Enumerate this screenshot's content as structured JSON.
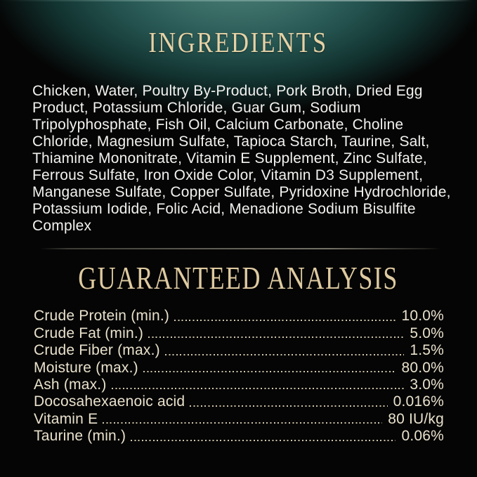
{
  "label": {
    "colors": {
      "background": "#050505",
      "teal_glow": "#3f6f69",
      "heading_gold": "#e3cfa3",
      "ingredients_text": "#f3f2ef",
      "analysis_text": "#e9e1cc",
      "divider": "#6e6c60"
    },
    "ingredients": {
      "title": "INGREDIENTS",
      "lines": [
        "Chicken, Water, Poultry By-Product, Pork Broth, Dried Egg",
        "Product, Potassium Chloride, Guar Gum, Sodium",
        "Tripolyphosphate, Fish Oil, Calcium Carbonate, Choline",
        "Chloride, Magnesium Sulfate, Tapioca Starch, Taurine, Salt,",
        "Thiamine Mononitrate, Vitamin E Supplement, Zinc Sulfate,",
        "Ferrous Sulfate, Iron Oxide Color, Vitamin D3 Supplement,",
        "Manganese Sulfate, Copper Sulfate, Pyridoxine Hydrochloride,",
        "Potassium Iodide, Folic Acid, Menadione Sodium Bisulfite",
        "Complex"
      ]
    },
    "guaranteed_analysis": {
      "title": "GUARANTEED ANALYSIS",
      "rows": [
        {
          "label": "Crude Protein (min.)",
          "value": "10.0%"
        },
        {
          "label": "Crude Fat (min.)",
          "value": "5.0%"
        },
        {
          "label": "Crude Fiber (max.)",
          "value": "1.5%"
        },
        {
          "label": "Moisture (max.)",
          "value": "80.0%"
        },
        {
          "label": "Ash (max.)",
          "value": "3.0%"
        },
        {
          "label": "Docosahexaenoic acid",
          "value": "0.016%"
        },
        {
          "label": "Vitamin E",
          "value": "80 IU/kg"
        },
        {
          "label": "Taurine (min.)",
          "value": "0.06%"
        }
      ]
    }
  }
}
